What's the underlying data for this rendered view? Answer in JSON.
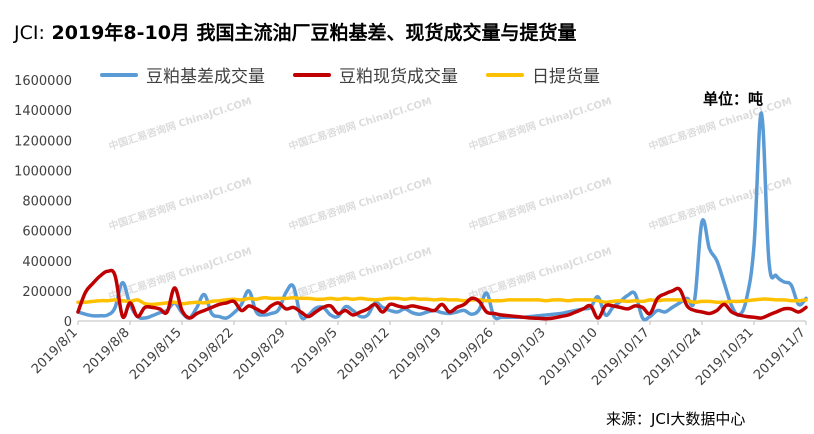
{
  "title_prefix": "JCI:",
  "title_main": "2019年8-10月 我国主流油厂豆粕基差、现货成交量与提货量",
  "unit_label": "单位：吨",
  "source_label": "来源：JCI大数据中心",
  "watermark": "中国汇易咨询网 ChinaJCI.COM",
  "chart_data": {
    "type": "line",
    "title": "2019年8-10月 我国主流油厂豆粕基差、现货成交量与提货量",
    "ylim": [
      0,
      1600000
    ],
    "yticks": [
      0,
      200000,
      400000,
      600000,
      800000,
      1000000,
      1200000,
      1400000,
      1600000
    ],
    "xlim": [
      0,
      98
    ],
    "xtick_labels": [
      "2019/8/1",
      "2019/8/8",
      "2019/8/15",
      "2019/8/22",
      "2019/8/29",
      "2019/9/5",
      "2019/9/12",
      "2019/9/19",
      "2019/9/26",
      "2019/10/3",
      "2019/10/10",
      "2019/10/17",
      "2019/10/24",
      "2019/10/31",
      "2019/11/7"
    ],
    "xtick_positions": [
      0,
      7,
      14,
      21,
      28,
      35,
      42,
      49,
      56,
      63,
      70,
      77,
      84,
      91,
      98
    ],
    "legend_position": "top",
    "series": [
      {
        "name": "豆粕基差成交量",
        "color": "#5b9bd5",
        "x": [
          0,
          1,
          2,
          3,
          4,
          5,
          6,
          7,
          8,
          9,
          10,
          11,
          12,
          13,
          14,
          15,
          16,
          17,
          18,
          19,
          20,
          21,
          22,
          23,
          24,
          25,
          26,
          27,
          28,
          29,
          30,
          31,
          32,
          33,
          34,
          35,
          36,
          37,
          38,
          39,
          40,
          41,
          42,
          43,
          44,
          45,
          46,
          47,
          48,
          49,
          50,
          51,
          52,
          53,
          54,
          55,
          56,
          57,
          58,
          59,
          60,
          61,
          62,
          63,
          64,
          65,
          66,
          67,
          68,
          69,
          70,
          71,
          72,
          73,
          74,
          75,
          76,
          77,
          78,
          79,
          80,
          81,
          82,
          83,
          84,
          85,
          86,
          87,
          88,
          89,
          90,
          91,
          92,
          93,
          94,
          95,
          96,
          97,
          98
        ],
        "values": [
          60000,
          45000,
          35000,
          35000,
          40000,
          90000,
          255000,
          110000,
          30000,
          20000,
          35000,
          55000,
          70000,
          120000,
          55000,
          20000,
          90000,
          175000,
          50000,
          30000,
          20000,
          55000,
          110000,
          200000,
          60000,
          40000,
          50000,
          75000,
          190000,
          230000,
          30000,
          40000,
          85000,
          90000,
          40000,
          30000,
          95000,
          70000,
          30000,
          40000,
          120000,
          90000,
          70000,
          60000,
          80000,
          55000,
          45000,
          60000,
          70000,
          55000,
          50000,
          60000,
          70000,
          45000,
          75000,
          185000,
          30000,
          25000,
          25000,
          25000,
          25000,
          30000,
          35000,
          40000,
          45000,
          50000,
          60000,
          70000,
          80000,
          90000,
          160000,
          40000,
          90000,
          130000,
          170000,
          180000,
          20000,
          30000,
          70000,
          60000,
          90000,
          120000,
          150000,
          140000,
          660000,
          480000,
          400000,
          250000,
          100000,
          40000,
          150000,
          500000,
          1380000,
          400000,
          300000,
          260000,
          240000,
          110000,
          150000
        ]
      },
      {
        "name": "豆粕现货成交量",
        "color": "#c00000",
        "x": [
          0,
          1,
          2,
          3,
          4,
          5,
          6,
          7,
          8,
          9,
          10,
          11,
          12,
          13,
          14,
          15,
          16,
          17,
          18,
          19,
          20,
          21,
          22,
          23,
          24,
          25,
          26,
          27,
          28,
          29,
          30,
          31,
          32,
          33,
          34,
          35,
          36,
          37,
          38,
          39,
          40,
          41,
          42,
          43,
          44,
          45,
          46,
          47,
          48,
          49,
          50,
          51,
          52,
          53,
          54,
          55,
          56,
          57,
          58,
          59,
          60,
          61,
          62,
          63,
          64,
          65,
          66,
          67,
          68,
          69,
          70,
          71,
          72,
          73,
          74,
          75,
          76,
          77,
          78,
          79,
          80,
          81,
          82,
          83,
          84,
          85,
          86,
          87,
          88,
          89,
          90,
          91,
          92,
          93,
          94,
          95,
          96,
          97,
          98
        ],
        "values": [
          60000,
          190000,
          250000,
          300000,
          330000,
          300000,
          30000,
          120000,
          30000,
          90000,
          90000,
          80000,
          60000,
          220000,
          70000,
          20000,
          50000,
          70000,
          90000,
          110000,
          120000,
          130000,
          70000,
          100000,
          80000,
          60000,
          100000,
          120000,
          80000,
          90000,
          60000,
          30000,
          60000,
          90000,
          100000,
          50000,
          70000,
          40000,
          60000,
          80000,
          110000,
          60000,
          110000,
          100000,
          90000,
          100000,
          90000,
          80000,
          70000,
          110000,
          60000,
          90000,
          110000,
          150000,
          130000,
          60000,
          50000,
          40000,
          35000,
          30000,
          25000,
          20000,
          18000,
          15000,
          20000,
          30000,
          40000,
          60000,
          80000,
          100000,
          20000,
          100000,
          100000,
          90000,
          80000,
          100000,
          90000,
          50000,
          150000,
          180000,
          200000,
          210000,
          100000,
          70000,
          60000,
          50000,
          70000,
          110000,
          60000,
          40000,
          30000,
          25000,
          20000,
          40000,
          60000,
          80000,
          80000,
          60000,
          90000
        ]
      },
      {
        "name": "日提货量",
        "color": "#ffc000",
        "x": [
          0,
          1,
          2,
          3,
          4,
          5,
          6,
          7,
          8,
          9,
          10,
          11,
          12,
          13,
          14,
          15,
          16,
          17,
          18,
          19,
          20,
          21,
          22,
          23,
          24,
          25,
          26,
          27,
          28,
          29,
          30,
          31,
          32,
          33,
          34,
          35,
          36,
          37,
          38,
          39,
          40,
          41,
          42,
          43,
          44,
          45,
          46,
          47,
          48,
          49,
          50,
          51,
          52,
          53,
          54,
          55,
          56,
          57,
          58,
          59,
          60,
          61,
          62,
          63,
          64,
          65,
          66,
          67,
          68,
          69,
          70,
          71,
          72,
          73,
          74,
          75,
          76,
          77,
          78,
          79,
          80,
          81,
          82,
          83,
          84,
          85,
          86,
          87,
          88,
          89,
          90,
          91,
          92,
          93,
          94,
          95,
          96,
          97,
          98
        ],
        "values": [
          125000,
          125000,
          130000,
          135000,
          135000,
          140000,
          135000,
          130000,
          140000,
          115000,
          110000,
          115000,
          120000,
          125000,
          115000,
          120000,
          125000,
          120000,
          130000,
          135000,
          140000,
          145000,
          140000,
          150000,
          145000,
          155000,
          150000,
          150000,
          150000,
          155000,
          150000,
          150000,
          145000,
          145000,
          150000,
          145000,
          150000,
          145000,
          150000,
          145000,
          140000,
          145000,
          150000,
          150000,
          145000,
          150000,
          145000,
          145000,
          140000,
          145000,
          140000,
          140000,
          135000,
          140000,
          140000,
          135000,
          135000,
          135000,
          140000,
          140000,
          140000,
          140000,
          140000,
          135000,
          140000,
          140000,
          135000,
          140000,
          140000,
          140000,
          135000,
          125000,
          130000,
          135000,
          130000,
          135000,
          130000,
          140000,
          135000,
          140000,
          140000,
          140000,
          135000,
          125000,
          130000,
          130000,
          125000,
          125000,
          130000,
          130000,
          135000,
          140000,
          145000,
          145000,
          140000,
          140000,
          135000,
          135000,
          140000
        ]
      }
    ]
  }
}
